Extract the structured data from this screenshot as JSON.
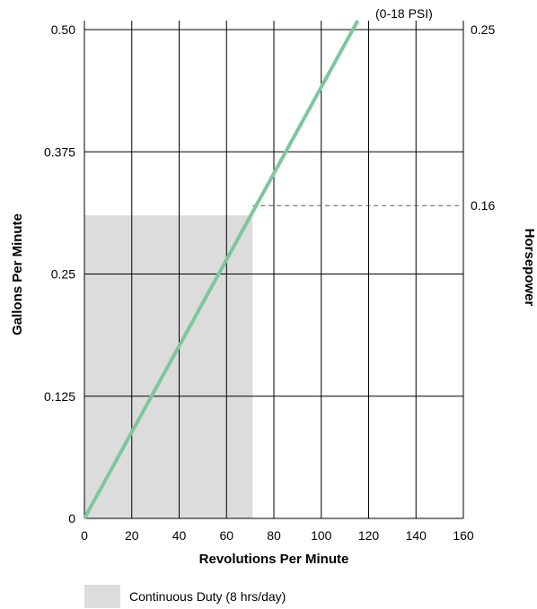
{
  "chart_data": {
    "type": "line",
    "title": "",
    "xlabel": "Revolutions Per Minute",
    "ylabel": "Gallons Per Minute",
    "y2label": "Horsepower",
    "xlim": [
      0,
      160
    ],
    "ylim": [
      0,
      0.5
    ],
    "y2lim": [
      0,
      0.25
    ],
    "x_ticks": [
      "0",
      "20",
      "40",
      "60",
      "80",
      "100",
      "120",
      "140",
      "160"
    ],
    "x_tick_values": [
      0,
      20,
      40,
      60,
      80,
      100,
      120,
      140,
      160
    ],
    "y_ticks": [
      "0",
      "0.125",
      "0.25",
      "0.375",
      "0.50"
    ],
    "y_tick_values": [
      0,
      0.125,
      0.25,
      0.375,
      0.5
    ],
    "y2_ticks": [
      "0.25",
      "0.16"
    ],
    "y2_tick_values": [
      0.25,
      0.16
    ],
    "grid": true,
    "series": [
      {
        "name": "",
        "color": "#7cc79e",
        "x": [
          0,
          119
        ],
        "y": [
          0,
          0.525
        ]
      }
    ],
    "line_annotation": "(0-18 PSI)",
    "reference_line": {
      "y2": 0.16,
      "x_from": 71,
      "style": "dashed"
    },
    "shaded_region": {
      "x": [
        0,
        71
      ],
      "y": [
        0,
        0.31
      ],
      "color": "#dcdcdc",
      "legend": "Continuous Duty (8 hrs/day)"
    }
  }
}
